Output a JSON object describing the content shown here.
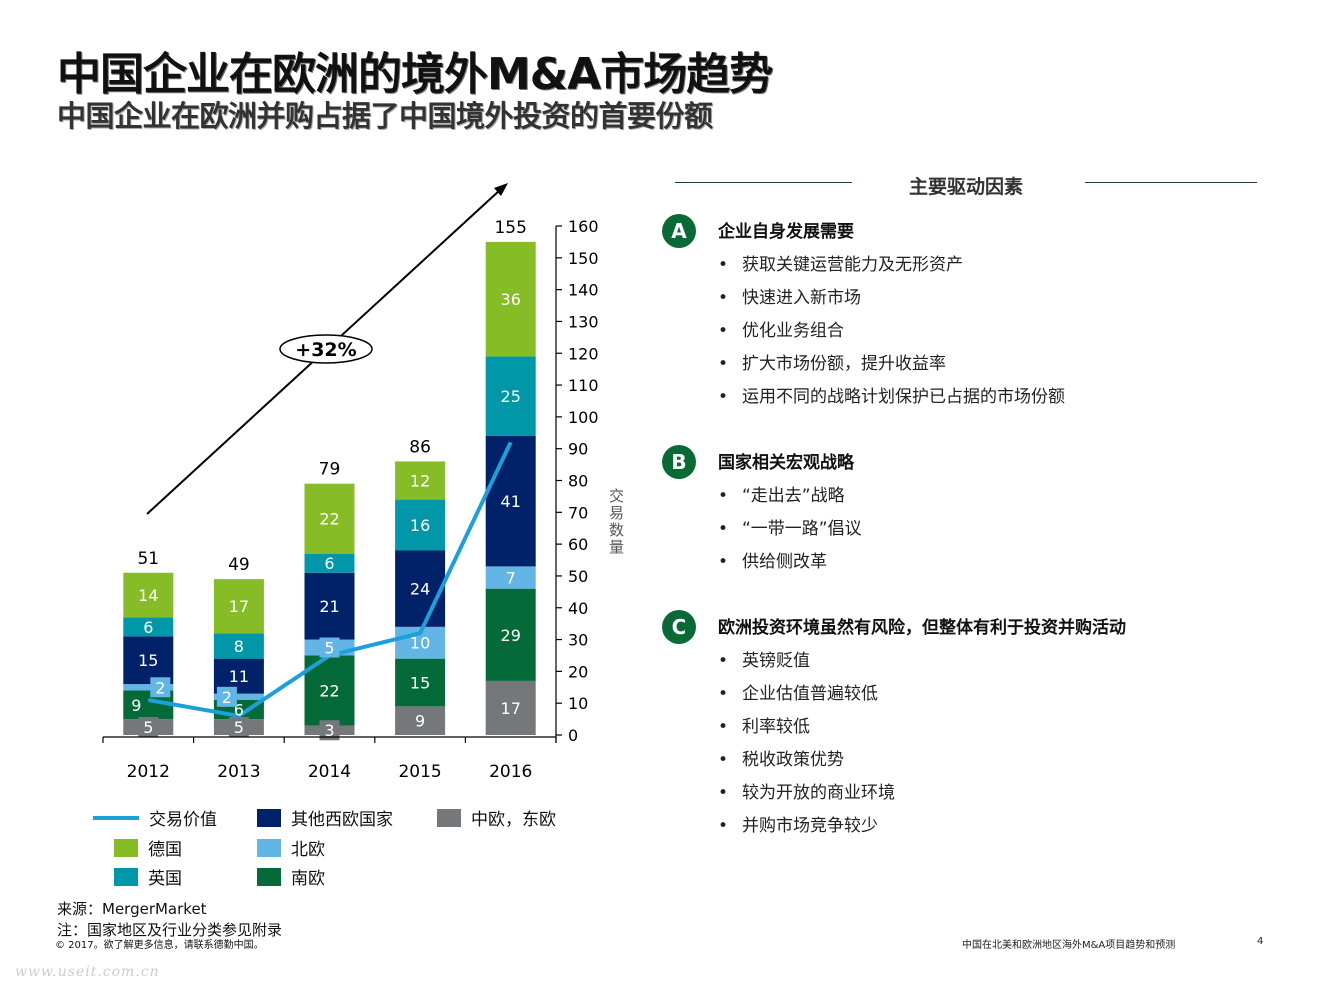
{
  "header": {
    "title": "中国企业在欧洲的境外M&A市场趋势",
    "subtitle": "中国企业在欧洲并购占据了中国境外投资的首要份额"
  },
  "colors": {
    "germany": "#86bc25",
    "uk": "#0097a9",
    "other_western": "#012169",
    "nordic": "#62b5e5",
    "southern": "#046a38",
    "central_eastern": "#75787b",
    "deal_value_line": "#1ba0dc",
    "badge": "#0a6a35"
  },
  "chart_data": {
    "type": "bar",
    "stacked": true,
    "categories": [
      "2012",
      "2013",
      "2014",
      "2015",
      "2016"
    ],
    "series": [
      {
        "name": "中欧，东欧",
        "key": "central_eastern",
        "values": [
          5,
          5,
          3,
          9,
          17
        ]
      },
      {
        "name": "南欧",
        "key": "southern",
        "values": [
          9,
          6,
          22,
          15,
          29
        ]
      },
      {
        "name": "北欧",
        "key": "nordic",
        "values": [
          2,
          2,
          5,
          10,
          7
        ]
      },
      {
        "name": "其他西欧国家",
        "key": "other_western",
        "values": [
          15,
          11,
          21,
          24,
          41
        ]
      },
      {
        "name": "英国",
        "key": "uk",
        "values": [
          6,
          8,
          6,
          16,
          25
        ]
      },
      {
        "name": "德国",
        "key": "germany",
        "values": [
          14,
          17,
          22,
          12,
          36
        ]
      }
    ],
    "totals": [
      51,
      49,
      79,
      86,
      155
    ],
    "line_series": {
      "name": "交易价值",
      "key": "deal_value_line",
      "values": [
        11,
        6,
        25,
        32,
        92
      ],
      "note": "estimated, no value axis shown"
    },
    "y_axis": {
      "label": "交易数量",
      "position": "right",
      "range": [
        0,
        160
      ],
      "ticks": [
        0,
        10,
        20,
        30,
        40,
        50,
        60,
        70,
        80,
        90,
        100,
        110,
        120,
        130,
        140,
        150,
        160
      ]
    },
    "annotation": {
      "text": "+32%",
      "type": "growth-arrow"
    },
    "legend": {
      "placement": "bottom",
      "items": [
        {
          "label": "交易价值",
          "key": "deal_value_line",
          "kind": "line"
        },
        {
          "label": "其他西欧国家",
          "key": "other_western",
          "kind": "box"
        },
        {
          "label": "中欧，东欧",
          "key": "central_eastern",
          "kind": "box"
        },
        {
          "label": "德国",
          "key": "germany",
          "kind": "box"
        },
        {
          "label": "北欧",
          "key": "nordic",
          "kind": "box"
        },
        {
          "label": "英国",
          "key": "uk",
          "kind": "box"
        },
        {
          "label": "南欧",
          "key": "southern",
          "kind": "box"
        }
      ]
    }
  },
  "sources": {
    "source": "来源：MergerMarket",
    "note": "注：国家地区及行业分类参见附录"
  },
  "drivers": {
    "heading": "主要驱动因素",
    "sections": [
      {
        "badge": "A",
        "title": "企业自身发展需要",
        "bullets": [
          "获取关键运营能力及无形资产",
          "快速进入新市场",
          "优化业务组合",
          "扩大市场份额，提升收益率",
          "运用不同的战略计划保护已占据的市场份额"
        ]
      },
      {
        "badge": "B",
        "title": "国家相关宏观战略",
        "bullets": [
          "“走出去”战略",
          "“一带一路”倡议",
          "供给侧改革"
        ]
      },
      {
        "badge": "C",
        "title": "欧洲投资环境虽然有风险，但整体有利于投资并购活动",
        "bullets": [
          "英镑贬值",
          "企业估值普遍较低",
          "利率较低",
          "税收政策优势",
          "较为开放的商业环境",
          "并购市场竞争较少"
        ]
      }
    ]
  },
  "footer": {
    "copyright": "© 2017。欲了解更多信息，请联系德勤中国。",
    "doc_title": "中国在北美和欧洲地区海外M&A项目趋势和预测",
    "page": "4",
    "watermark": "www.useit.com.cn"
  }
}
